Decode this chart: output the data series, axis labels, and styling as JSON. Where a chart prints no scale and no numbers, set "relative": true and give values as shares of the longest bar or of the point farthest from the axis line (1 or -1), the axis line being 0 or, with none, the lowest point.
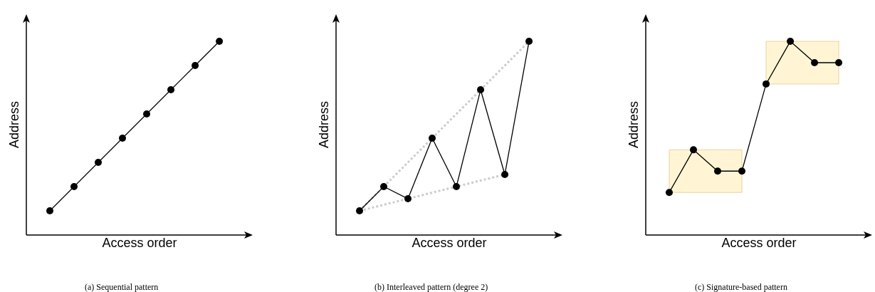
{
  "chart_data": [
    {
      "type": "line",
      "relative": true,
      "xlabel": "Access order",
      "ylabel": "Address",
      "categories": [
        null,
        null,
        null,
        null,
        null,
        null,
        null,
        null
      ],
      "marker": "circle",
      "line_style": "solid",
      "annotations": [
        "(a) Sequential pattern"
      ],
      "series": [
        {
          "color": "#000000",
          "values": [
            0.125,
            0.25,
            0.375,
            0.5,
            0.625,
            0.75,
            0.875,
            1
          ]
        }
      ]
    },
    {
      "type": "line",
      "relative": true,
      "xlabel": "Access order",
      "ylabel": "Address",
      "categories": [
        null,
        null,
        null,
        null,
        null,
        null,
        null,
        null
      ],
      "marker": "circle",
      "line_style": "solid",
      "annotations": [
        "(b) Interleaved pattern (degree 2)"
      ],
      "series": [
        {
          "color": "#cccccc",
          "values": [
            0.125,
            null,
            0.1875,
            null,
            0.25,
            null,
            0.3125,
            null
          ],
          "marker": "none",
          "line_style": "dotted"
        },
        {
          "color": "#cccccc",
          "values": [
            0.125,
            null,
            null,
            0.5,
            null,
            0.75,
            null,
            1
          ],
          "marker": "none",
          "line_style": "dotted"
        },
        {
          "color": "#000000",
          "values": [
            0.125,
            0.25,
            0.1875,
            0.5,
            0.25,
            0.75,
            0.3125,
            1
          ]
        }
      ]
    },
    {
      "type": "line",
      "relative": true,
      "xlabel": "Access order",
      "ylabel": "Address",
      "categories": [
        null,
        null,
        null,
        null,
        null,
        null,
        null,
        null
      ],
      "marker": "circle",
      "line_style": "solid",
      "annotations": [
        "(c) Signature-based pattern"
      ],
      "series": [
        {
          "color": "#000000",
          "values": [
            0.22,
            0.44,
            0.33,
            0.33,
            0.78,
            1,
            0.89,
            0.89
          ],
          "lower": [
            0.22,
            0.22,
            0.22,
            0.22,
            0.78,
            0.78,
            0.78,
            0.78
          ],
          "upper": [
            0.44,
            0.44,
            0.44,
            0.44,
            1,
            1,
            1,
            1
          ]
        }
      ]
    }
  ]
}
